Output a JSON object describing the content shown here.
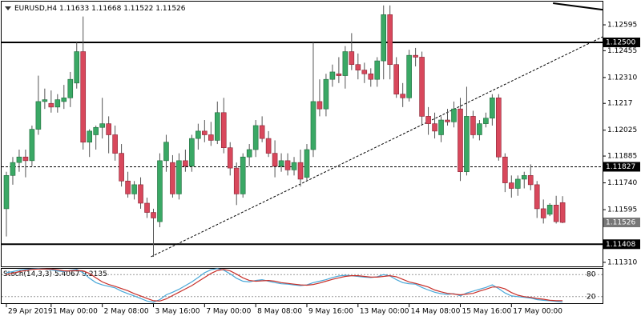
{
  "chart_data": {
    "type": "candlestick",
    "symbol": "EURUSD,H4",
    "open": [
      1.116,
      1.1178,
      1.1185,
      1.1188,
      1.1186,
      1.1203,
      1.1218,
      1.1217,
      1.1215,
      1.1218,
      1.122,
      1.1228,
      1.1245,
      1.1196,
      1.12,
      1.1204,
      1.1206,
      1.12,
      1.119,
      1.1175,
      1.1168,
      1.1173,
      1.1163,
      1.1158,
      1.1153,
      1.1186,
      1.1185,
      1.1168,
      1.1186,
      1.1183,
      1.1198,
      1.1202,
      1.12,
      1.1197,
      1.1212,
      1.1193,
      1.1182,
      1.1168,
      1.1188,
      1.1192,
      1.1205,
      1.1198,
      1.119,
      1.1183,
      1.1186,
      1.1181,
      1.1185,
      1.1177,
      1.1192,
      1.1218,
      1.1214,
      1.123,
      1.1233,
      1.1232,
      1.1245,
      1.1238,
      1.1235,
      1.1233,
      1.123,
      1.124,
      1.1265,
      1.1238,
      1.1222,
      1.122,
      1.1243,
      1.1242,
      1.121,
      1.1206,
      1.12,
      1.1208,
      1.1207,
      1.1214,
      1.118,
      1.121,
      1.12,
      1.1206,
      1.1209,
      1.122,
      1.1188,
      1.1174,
      1.1171,
      1.1176,
      1.1178,
      1.1173,
      1.116,
      1.1157,
      1.1162,
      1.11633
    ],
    "high": [
      1.118,
      1.1188,
      1.1192,
      1.1192,
      1.1205,
      1.1232,
      1.1225,
      1.1224,
      1.1222,
      1.1227,
      1.1234,
      1.125,
      1.1264,
      1.1203,
      1.1205,
      1.122,
      1.121,
      1.1205,
      1.1195,
      1.118,
      1.1175,
      1.1177,
      1.1166,
      1.116,
      1.119,
      1.12,
      1.1189,
      1.119,
      1.1192,
      1.12,
      1.1206,
      1.1208,
      1.1207,
      1.1218,
      1.122,
      1.1196,
      1.1185,
      1.119,
      1.1195,
      1.1208,
      1.121,
      1.1202,
      1.1197,
      1.119,
      1.119,
      1.1188,
      1.1192,
      1.1195,
      1.125,
      1.123,
      1.1233,
      1.1238,
      1.1242,
      1.1248,
      1.1255,
      1.1244,
      1.1239,
      1.1236,
      1.1242,
      1.127,
      1.127,
      1.1242,
      1.1228,
      1.1246,
      1.1247,
      1.1245,
      1.1215,
      1.1212,
      1.121,
      1.1214,
      1.1218,
      1.122,
      1.1226,
      1.1213,
      1.1208,
      1.1212,
      1.1222,
      1.1222,
      1.119,
      1.1178,
      1.1178,
      1.118,
      1.1184,
      1.1175,
      1.1165,
      1.1163,
      1.1167,
      1.11668
    ],
    "low": [
      1.1145,
      1.1173,
      1.118,
      1.1177,
      1.1183,
      1.12,
      1.1214,
      1.1212,
      1.1212,
      1.1214,
      1.1215,
      1.1225,
      1.1192,
      1.1188,
      1.1192,
      1.1198,
      1.119,
      1.1186,
      1.1172,
      1.1166,
      1.1165,
      1.116,
      1.1155,
      1.1134,
      1.115,
      1.118,
      1.1166,
      1.1165,
      1.118,
      1.118,
      1.1192,
      1.1196,
      1.1194,
      1.1195,
      1.119,
      1.1178,
      1.1162,
      1.1166,
      1.1183,
      1.1188,
      1.1196,
      1.1188,
      1.1177,
      1.118,
      1.1178,
      1.1178,
      1.1172,
      1.1175,
      1.1188,
      1.121,
      1.121,
      1.1226,
      1.1228,
      1.1225,
      1.1235,
      1.123,
      1.1228,
      1.1226,
      1.1226,
      1.123,
      1.123,
      1.122,
      1.1215,
      1.1218,
      1.1237,
      1.1205,
      1.12,
      1.1198,
      1.1196,
      1.1205,
      1.1204,
      1.1175,
      1.1178,
      1.1198,
      1.1197,
      1.1204,
      1.1205,
      1.1186,
      1.1169,
      1.1166,
      1.1167,
      1.1171,
      1.117,
      1.1155,
      1.1152,
      1.1156,
      1.1152,
      1.11522
    ],
    "close": [
      1.1178,
      1.1185,
      1.1188,
      1.1186,
      1.1203,
      1.1218,
      1.1219,
      1.1215,
      1.1219,
      1.122,
      1.123,
      1.1245,
      1.1196,
      1.1202,
      1.1204,
      1.1206,
      1.12,
      1.119,
      1.1175,
      1.1168,
      1.1173,
      1.1163,
      1.1158,
      1.1155,
      1.1186,
      1.1196,
      1.1168,
      1.1186,
      1.1183,
      1.1198,
      1.1202,
      1.12,
      1.1197,
      1.1212,
      1.1193,
      1.1182,
      1.1168,
      1.1188,
      1.1192,
      1.1205,
      1.1198,
      1.119,
      1.1183,
      1.1186,
      1.1181,
      1.1185,
      1.1176,
      1.1192,
      1.1218,
      1.1214,
      1.123,
      1.1234,
      1.1232,
      1.1245,
      1.1238,
      1.1235,
      1.1233,
      1.123,
      1.124,
      1.1265,
      1.1238,
      1.1222,
      1.122,
      1.1243,
      1.1242,
      1.121,
      1.1206,
      1.1202,
      1.1208,
      1.1207,
      1.1214,
      1.118,
      1.121,
      1.12,
      1.1206,
      1.1209,
      1.122,
      1.1188,
      1.1174,
      1.1171,
      1.1176,
      1.1178,
      1.1173,
      1.116,
      1.1155,
      1.1162,
      1.1153,
      1.11526
    ],
    "up_color": "#3aa865",
    "down_color": "#d8485c",
    "xlim": [
      -0.75,
      93.25
    ],
    "xticks": [
      {
        "value": 0,
        "label": "29 Apr 2019"
      },
      {
        "value": 7,
        "label": "1 May 00:00"
      },
      {
        "value": 15,
        "label": "2 May 08:00"
      },
      {
        "value": 23,
        "label": "3 May 16:00"
      },
      {
        "value": 31,
        "label": "7 May 00:00"
      },
      {
        "value": 39,
        "label": "8 May 08:00"
      },
      {
        "value": 47,
        "label": "9 May 16:00"
      },
      {
        "value": 55,
        "label": "13 May 00:00"
      },
      {
        "value": 63,
        "label": "14 May 08:00"
      },
      {
        "value": 71,
        "label": "15 May 16:00"
      },
      {
        "value": 79,
        "label": "17 May 00:00"
      }
    ],
    "ylim": [
      1.11288,
      1.12712
    ],
    "yticks": [
      1.12595,
      1.12455,
      {
        "value": 1.1231,
        "label": "1.12310"
      },
      1.1217,
      1.12025,
      1.11885,
      {
        "value": 1.1174,
        "label": "1.11740"
      },
      1.11595,
      {
        "value": 1.1131,
        "label": "1.11310"
      }
    ],
    "levels": [
      {
        "value": 1.125,
        "label": "1.12500",
        "style": "solid"
      },
      {
        "value": 1.11827,
        "label": "1.11827",
        "style": "dotted"
      },
      {
        "value": 1.11408,
        "label": "1.11408",
        "style": "solid"
      }
    ],
    "trendlines": [
      {
        "x": [
          22.625,
          93.25
        ],
        "y": [
          1.1134,
          1.1253
        ],
        "style": "dotted"
      },
      {
        "x": [
          85.5,
          93.25
        ],
        "y": [
          1.12712,
          1.12677
        ],
        "style": "solid"
      }
    ],
    "indicator": {
      "title": "Stoch(14,3,3)",
      "ylim": [
        0,
        100
      ],
      "yticks": [
        80,
        20
      ],
      "series": [
        {
          "color": "#4aa8d8",
          "values": [
            85,
            88,
            92,
            94,
            95,
            96,
            95,
            93,
            90,
            88,
            91,
            94,
            85,
            70,
            58,
            52,
            48,
            44,
            35,
            28,
            22,
            15,
            8,
            5,
            12,
            25,
            32,
            40,
            50,
            60,
            72,
            85,
            93,
            96,
            92,
            82,
            70,
            62,
            60,
            64,
            66,
            62,
            58,
            55,
            54,
            52,
            50,
            52,
            58,
            62,
            66,
            72,
            76,
            78,
            77,
            75,
            73,
            72,
            74,
            80,
            76,
            66,
            58,
            55,
            54,
            45,
            38,
            32,
            28,
            26,
            28,
            22,
            30,
            35,
            40,
            45,
            52,
            42,
            30,
            22,
            20,
            18,
            16,
            12,
            10,
            9,
            7,
            5.4067
          ]
        },
        {
          "color": "#c8302a",
          "values": [
            80,
            84,
            88,
            91,
            94,
            95,
            95,
            95,
            93,
            90,
            90,
            91,
            90,
            83,
            71,
            60,
            53,
            48,
            42,
            36,
            28,
            22,
            15,
            9,
            8,
            14,
            23,
            32,
            41,
            50,
            61,
            72,
            83,
            91,
            94,
            90,
            81,
            71,
            64,
            62,
            63,
            64,
            62,
            58,
            56,
            54,
            52,
            51,
            53,
            57,
            62,
            67,
            71,
            75,
            77,
            77,
            75,
            73,
            73,
            75,
            77,
            74,
            67,
            60,
            56,
            51,
            46,
            38,
            33,
            29,
            27,
            25,
            27,
            29,
            35,
            40,
            46,
            46,
            41,
            31,
            24,
            20,
            18,
            15,
            13,
            10,
            9,
            9.2135
          ]
        }
      ]
    }
  }
}
